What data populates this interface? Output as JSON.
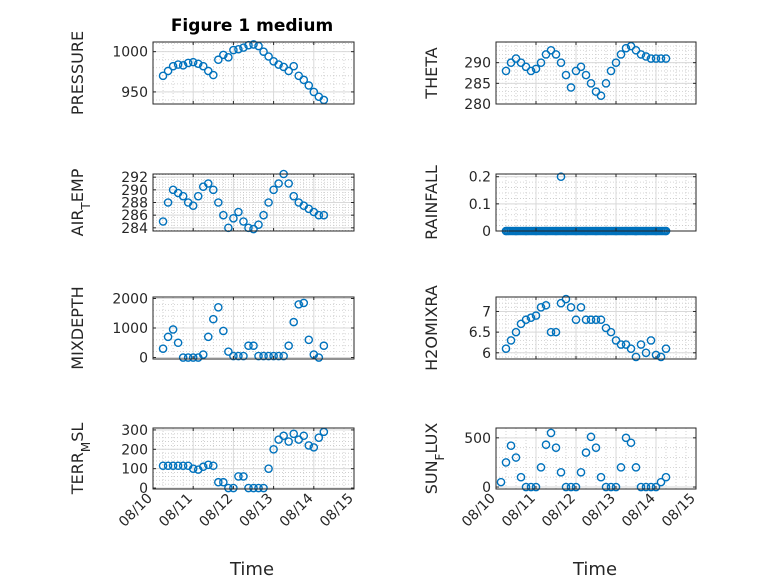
{
  "figure": {
    "title": "Figure 1 medium",
    "marker_color": "#0072BD"
  },
  "chart_data": [
    {
      "type": "scatter",
      "ylabel": "PRESSURE",
      "xlabel": "",
      "title": "Figure 1 medium",
      "xlim": [
        "08/10",
        "08/15"
      ],
      "ylim": [
        935,
        1012
      ],
      "yticks": [
        950,
        1000
      ],
      "grid": true,
      "xticklabels": [],
      "x": [
        "08/10 06:00",
        "08/10 09:00",
        "08/10 12:00",
        "08/10 15:00",
        "08/10 18:00",
        "08/10 21:00",
        "08/11 00:00",
        "08/11 03:00",
        "08/11 06:00",
        "08/11 09:00",
        "08/11 12:00",
        "08/11 15:00",
        "08/11 18:00",
        "08/11 21:00",
        "08/12 00:00",
        "08/12 03:00",
        "08/12 06:00",
        "08/12 09:00",
        "08/12 12:00",
        "08/12 15:00",
        "08/12 18:00",
        "08/12 21:00",
        "08/13 00:00",
        "08/13 03:00",
        "08/13 06:00",
        "08/13 09:00",
        "08/13 12:00",
        "08/13 15:00",
        "08/13 18:00",
        "08/13 21:00",
        "08/14 00:00",
        "08/14 03:00",
        "08/14 06:00"
      ],
      "y": [
        970,
        976,
        982,
        984,
        983,
        986,
        987,
        985,
        982,
        976,
        971,
        990,
        996,
        993,
        1002,
        1003,
        1005,
        1008,
        1009,
        1007,
        1000,
        994,
        988,
        984,
        981,
        976,
        982,
        970,
        965,
        958,
        950,
        944,
        940
      ]
    },
    {
      "type": "scatter",
      "ylabel": "THETA",
      "xlabel": "",
      "xlim": [
        "08/10",
        "08/15"
      ],
      "ylim": [
        280,
        295
      ],
      "yticks": [
        280,
        285,
        290
      ],
      "grid": true,
      "xticklabels": [],
      "x": [
        "08/10 06:00",
        "08/10 09:00",
        "08/10 12:00",
        "08/10 15:00",
        "08/10 18:00",
        "08/10 21:00",
        "08/11 00:00",
        "08/11 03:00",
        "08/11 06:00",
        "08/11 09:00",
        "08/11 12:00",
        "08/11 15:00",
        "08/11 18:00",
        "08/11 21:00",
        "08/12 00:00",
        "08/12 03:00",
        "08/12 06:00",
        "08/12 09:00",
        "08/12 12:00",
        "08/12 15:00",
        "08/12 18:00",
        "08/12 21:00",
        "08/13 00:00",
        "08/13 03:00",
        "08/13 06:00",
        "08/13 09:00",
        "08/13 12:00",
        "08/13 15:00",
        "08/13 18:00",
        "08/13 21:00",
        "08/14 00:00",
        "08/14 03:00",
        "08/14 06:00"
      ],
      "y": [
        288,
        290,
        291,
        290,
        289,
        288,
        288.5,
        290,
        292,
        293,
        292,
        290,
        287,
        284,
        288,
        289,
        287,
        285,
        283,
        282,
        285,
        288,
        290,
        292,
        293.5,
        294,
        293,
        292,
        291.5,
        291,
        291,
        291,
        291
      ]
    },
    {
      "type": "scatter",
      "ylabel": "AIR_TEMP",
      "xlabel": "",
      "xlim": [
        "08/10",
        "08/15"
      ],
      "ylim": [
        283.5,
        292.5
      ],
      "yticks": [
        284,
        286,
        288,
        290,
        292
      ],
      "grid": true,
      "xticklabels": [],
      "x": [
        "08/10 06:00",
        "08/10 09:00",
        "08/10 12:00",
        "08/10 15:00",
        "08/10 18:00",
        "08/10 21:00",
        "08/11 00:00",
        "08/11 03:00",
        "08/11 06:00",
        "08/11 09:00",
        "08/11 12:00",
        "08/11 15:00",
        "08/11 18:00",
        "08/11 21:00",
        "08/12 00:00",
        "08/12 03:00",
        "08/12 06:00",
        "08/12 09:00",
        "08/12 12:00",
        "08/12 15:00",
        "08/12 18:00",
        "08/12 21:00",
        "08/13 00:00",
        "08/13 03:00",
        "08/13 06:00",
        "08/13 09:00",
        "08/13 12:00",
        "08/13 15:00",
        "08/13 18:00",
        "08/13 21:00",
        "08/14 00:00",
        "08/14 03:00",
        "08/14 06:00"
      ],
      "y": [
        285,
        288,
        290,
        289.5,
        289,
        288,
        287.5,
        289,
        290.5,
        291,
        290,
        288,
        286,
        284,
        285.5,
        286.5,
        285,
        284,
        283.8,
        284.5,
        286,
        288,
        290,
        291,
        292.5,
        291,
        289,
        288,
        287.5,
        287,
        286.5,
        286,
        286
      ]
    },
    {
      "type": "scatter",
      "ylabel": "RAINFALL",
      "xlabel": "",
      "xlim": [
        "08/10",
        "08/15"
      ],
      "ylim": [
        0,
        0.21
      ],
      "yticks": [
        0,
        0.1,
        0.2
      ],
      "grid": true,
      "xticklabels": [],
      "x": [
        "08/10 06:00",
        "08/10 12:00",
        "08/10 18:00",
        "08/11 00:00",
        "08/11 06:00",
        "08/11 12:00",
        "08/11 15:00",
        "08/11 18:00",
        "08/12 00:00",
        "08/12 06:00",
        "08/12 12:00",
        "08/12 18:00",
        "08/13 00:00",
        "08/13 06:00",
        "08/13 12:00",
        "08/13 18:00",
        "08/14 00:00",
        "08/14 06:00"
      ],
      "y": [
        0,
        0,
        0,
        0,
        0,
        0,
        0.2,
        0,
        0,
        0,
        0,
        0,
        0,
        0,
        0,
        0,
        0,
        0
      ]
    },
    {
      "type": "scatter",
      "ylabel": "MIXDEPTH",
      "xlabel": "",
      "xlim": [
        "08/10",
        "08/15"
      ],
      "ylim": [
        -50,
        2050
      ],
      "yticks": [
        0,
        1000,
        2000
      ],
      "grid": true,
      "xticklabels": [],
      "x": [
        "08/10 06:00",
        "08/10 09:00",
        "08/10 12:00",
        "08/10 15:00",
        "08/10 18:00",
        "08/10 21:00",
        "08/11 00:00",
        "08/11 03:00",
        "08/11 06:00",
        "08/11 09:00",
        "08/11 12:00",
        "08/11 15:00",
        "08/11 18:00",
        "08/11 21:00",
        "08/12 00:00",
        "08/12 03:00",
        "08/12 06:00",
        "08/12 09:00",
        "08/12 12:00",
        "08/12 15:00",
        "08/12 18:00",
        "08/12 21:00",
        "08/13 00:00",
        "08/13 03:00",
        "08/13 06:00",
        "08/13 09:00",
        "08/13 12:00",
        "08/13 15:00",
        "08/13 18:00",
        "08/13 21:00",
        "08/14 00:00",
        "08/14 03:00",
        "08/14 06:00"
      ],
      "y": [
        300,
        700,
        950,
        500,
        0,
        0,
        0,
        0,
        100,
        700,
        1300,
        1700,
        900,
        200,
        50,
        50,
        50,
        400,
        400,
        50,
        50,
        50,
        50,
        50,
        50,
        400,
        1200,
        1800,
        1850,
        600,
        100,
        0,
        400
      ]
    },
    {
      "type": "scatter",
      "ylabel": "H2OMIXRA",
      "xlabel": "",
      "xlim": [
        "08/10",
        "08/15"
      ],
      "ylim": [
        5.85,
        7.35
      ],
      "yticks": [
        6,
        6.5,
        7
      ],
      "grid": true,
      "xticklabels": [],
      "x": [
        "08/10 06:00",
        "08/10 09:00",
        "08/10 12:00",
        "08/10 15:00",
        "08/10 18:00",
        "08/10 21:00",
        "08/11 00:00",
        "08/11 03:00",
        "08/11 06:00",
        "08/11 09:00",
        "08/11 12:00",
        "08/11 15:00",
        "08/11 18:00",
        "08/11 21:00",
        "08/12 00:00",
        "08/12 03:00",
        "08/12 06:00",
        "08/12 09:00",
        "08/12 12:00",
        "08/12 15:00",
        "08/12 18:00",
        "08/12 21:00",
        "08/13 00:00",
        "08/13 03:00",
        "08/13 06:00",
        "08/13 09:00",
        "08/13 12:00",
        "08/13 15:00",
        "08/13 18:00",
        "08/13 21:00",
        "08/14 00:00",
        "08/14 03:00",
        "08/14 06:00"
      ],
      "y": [
        6.1,
        6.3,
        6.5,
        6.7,
        6.8,
        6.85,
        6.9,
        7.1,
        7.15,
        6.5,
        6.5,
        7.2,
        7.3,
        7.1,
        6.8,
        7.1,
        6.8,
        6.8,
        6.8,
        6.8,
        6.6,
        6.5,
        6.3,
        6.2,
        6.2,
        6.1,
        5.9,
        6.2,
        6.0,
        6.3,
        5.95,
        5.9,
        6.1
      ]
    },
    {
      "type": "scatter",
      "ylabel": "TERR_MSL",
      "xlabel": "Time",
      "xlim": [
        "08/10",
        "08/15"
      ],
      "ylim": [
        -5,
        310
      ],
      "yticks": [
        0,
        100,
        200,
        300
      ],
      "grid": true,
      "xticklabels": [
        "08/10",
        "08/11",
        "08/12",
        "08/13",
        "08/14",
        "08/15"
      ],
      "x": [
        "08/10 06:00",
        "08/10 09:00",
        "08/10 12:00",
        "08/10 15:00",
        "08/10 18:00",
        "08/10 21:00",
        "08/11 00:00",
        "08/11 03:00",
        "08/11 06:00",
        "08/11 09:00",
        "08/11 12:00",
        "08/11 15:00",
        "08/11 18:00",
        "08/11 21:00",
        "08/12 00:00",
        "08/12 03:00",
        "08/12 06:00",
        "08/12 09:00",
        "08/12 12:00",
        "08/12 15:00",
        "08/12 18:00",
        "08/12 21:00",
        "08/13 00:00",
        "08/13 03:00",
        "08/13 06:00",
        "08/13 09:00",
        "08/13 12:00",
        "08/13 15:00",
        "08/13 18:00",
        "08/13 21:00",
        "08/14 00:00",
        "08/14 03:00",
        "08/14 06:00"
      ],
      "y": [
        115,
        115,
        115,
        115,
        115,
        115,
        100,
        95,
        110,
        120,
        115,
        30,
        30,
        0,
        0,
        60,
        60,
        0,
        0,
        0,
        0,
        100,
        200,
        250,
        270,
        240,
        280,
        250,
        270,
        220,
        210,
        260,
        290
      ]
    },
    {
      "type": "scatter",
      "ylabel": "SUN_FLUX",
      "xlabel": "Time",
      "xlim": [
        "08/10",
        "08/15"
      ],
      "ylim": [
        -20,
        600
      ],
      "yticks": [
        0,
        500
      ],
      "grid": true,
      "xticklabels": [
        "08/10",
        "08/11",
        "08/12",
        "08/13",
        "08/14",
        "08/15"
      ],
      "x": [
        "08/10 03:00",
        "08/10 06:00",
        "08/10 09:00",
        "08/10 12:00",
        "08/10 15:00",
        "08/10 18:00",
        "08/10 21:00",
        "08/11 00:00",
        "08/11 03:00",
        "08/11 06:00",
        "08/11 09:00",
        "08/11 12:00",
        "08/11 15:00",
        "08/11 18:00",
        "08/11 21:00",
        "08/12 00:00",
        "08/12 03:00",
        "08/12 06:00",
        "08/12 09:00",
        "08/12 12:00",
        "08/12 15:00",
        "08/12 18:00",
        "08/12 21:00",
        "08/13 00:00",
        "08/13 03:00",
        "08/13 06:00",
        "08/13 09:00",
        "08/13 12:00",
        "08/13 15:00",
        "08/13 18:00",
        "08/13 21:00",
        "08/14 00:00",
        "08/14 03:00",
        "08/14 06:00"
      ],
      "y": [
        50,
        250,
        420,
        300,
        100,
        0,
        0,
        0,
        200,
        430,
        550,
        400,
        150,
        0,
        0,
        0,
        150,
        350,
        510,
        400,
        100,
        0,
        0,
        0,
        200,
        500,
        450,
        200,
        0,
        0,
        0,
        0,
        50,
        100
      ]
    }
  ]
}
